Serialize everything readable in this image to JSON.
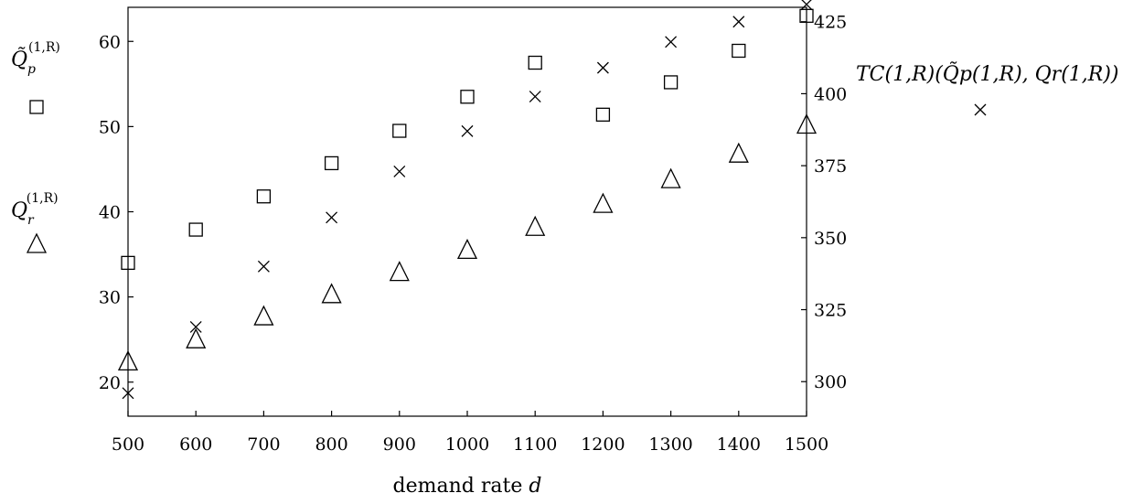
{
  "chart_data": {
    "type": "scatter",
    "xlabel_prefix": "demand rate ",
    "xlabel_var": "d",
    "x": [
      500,
      600,
      700,
      800,
      900,
      1000,
      1100,
      1200,
      1300,
      1400,
      1500
    ],
    "xlim": [
      500,
      1500
    ],
    "x_ticks": [
      "500",
      "600",
      "700",
      "800",
      "900",
      "1000",
      "1100",
      "1200",
      "1300",
      "1400",
      "1500"
    ],
    "left_axis": {
      "ylim": [
        16,
        64
      ],
      "ticks": [
        "20",
        "30",
        "40",
        "50",
        "60"
      ],
      "tick_values": [
        20,
        30,
        40,
        50,
        60
      ]
    },
    "right_axis": {
      "ylim": [
        288,
        430
      ],
      "ticks": [
        "300",
        "325",
        "350",
        "375",
        "400",
        "425"
      ],
      "tick_values": [
        300,
        325,
        350,
        375,
        400,
        425
      ]
    },
    "series": [
      {
        "key": "qp",
        "marker": "square",
        "axis": "left",
        "label_main": "Q̃",
        "label_sub": "p",
        "label_sup": "(1,R)",
        "values": [
          34.0,
          37.9,
          41.8,
          45.7,
          49.5,
          53.5,
          57.5,
          51.4,
          55.2,
          58.9,
          63.0
        ]
      },
      {
        "key": "qr",
        "marker": "triangle",
        "axis": "left",
        "label_main": "Q",
        "label_sub": "r",
        "label_sup": "(1,R)",
        "values": [
          22.4,
          25.0,
          27.7,
          30.3,
          32.9,
          35.5,
          38.2,
          40.9,
          43.8,
          46.8,
          50.2
        ]
      },
      {
        "key": "tc",
        "marker": "cross",
        "axis": "right",
        "label_text": "TC(1,R)(Q̃p(1,R), Qr(1,R))",
        "values": [
          296,
          319,
          340,
          357,
          373,
          387,
          399,
          409,
          418,
          425,
          431
        ]
      }
    ]
  }
}
